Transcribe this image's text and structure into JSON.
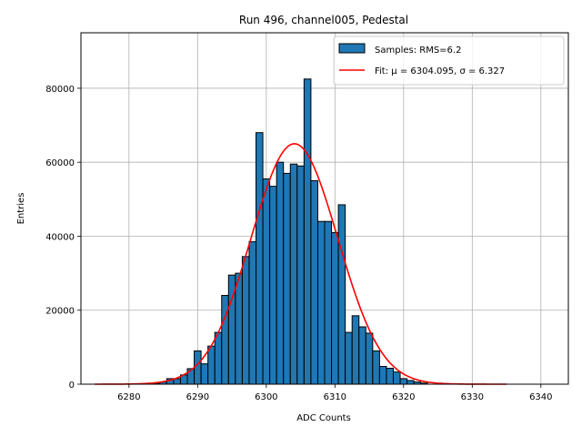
{
  "chart_data": {
    "type": "bar",
    "title": "Run 496, channel005, Pedestal",
    "xlabel": "ADC Counts",
    "ylabel": "Entries",
    "xlim": [
      6273,
      6344
    ],
    "ylim": [
      0,
      95000
    ],
    "x_ticks": [
      6280,
      6290,
      6300,
      6310,
      6320,
      6330,
      6340
    ],
    "y_ticks": [
      0,
      20000,
      40000,
      60000,
      80000
    ],
    "grid": true,
    "legend_position": "top-right",
    "bin_width": 1,
    "histogram": {
      "label": "Samples: RMS=6.2",
      "color": "#1f77b4",
      "edge_color": "#000000",
      "bins": [
        {
          "x": 6284,
          "value": 200
        },
        {
          "x": 6285,
          "value": 600
        },
        {
          "x": 6286,
          "value": 1500
        },
        {
          "x": 6287,
          "value": 1500
        },
        {
          "x": 6288,
          "value": 2500
        },
        {
          "x": 6289,
          "value": 4200
        },
        {
          "x": 6290,
          "value": 9000
        },
        {
          "x": 6291,
          "value": 5500
        },
        {
          "x": 6292,
          "value": 10300
        },
        {
          "x": 6293,
          "value": 14000
        },
        {
          "x": 6294,
          "value": 24000
        },
        {
          "x": 6295,
          "value": 29500
        },
        {
          "x": 6296,
          "value": 30000
        },
        {
          "x": 6297,
          "value": 34500
        },
        {
          "x": 6298,
          "value": 38500
        },
        {
          "x": 6299,
          "value": 68000
        },
        {
          "x": 6300,
          "value": 55500
        },
        {
          "x": 6301,
          "value": 53500
        },
        {
          "x": 6302,
          "value": 60000
        },
        {
          "x": 6303,
          "value": 57000
        },
        {
          "x": 6304,
          "value": 59500
        },
        {
          "x": 6305,
          "value": 59000
        },
        {
          "x": 6306,
          "value": 82500
        },
        {
          "x": 6307,
          "value": 55000
        },
        {
          "x": 6308,
          "value": 44000
        },
        {
          "x": 6309,
          "value": 44000
        },
        {
          "x": 6310,
          "value": 41000
        },
        {
          "x": 6311,
          "value": 48500
        },
        {
          "x": 6312,
          "value": 14000
        },
        {
          "x": 6313,
          "value": 18500
        },
        {
          "x": 6314,
          "value": 15500
        },
        {
          "x": 6315,
          "value": 13800
        },
        {
          "x": 6316,
          "value": 9000
        },
        {
          "x": 6317,
          "value": 4800
        },
        {
          "x": 6318,
          "value": 4300
        },
        {
          "x": 6319,
          "value": 3300
        },
        {
          "x": 6320,
          "value": 1500
        },
        {
          "x": 6321,
          "value": 1000
        },
        {
          "x": 6322,
          "value": 600
        },
        {
          "x": 6323,
          "value": 300
        }
      ]
    },
    "fit": {
      "label": "Fit: μ = 6304.095, σ = 6.327",
      "color": "#ff0000",
      "mu": 6304.095,
      "sigma": 6.327,
      "amplitude": 65000,
      "x_range": [
        6275,
        6335
      ]
    }
  }
}
